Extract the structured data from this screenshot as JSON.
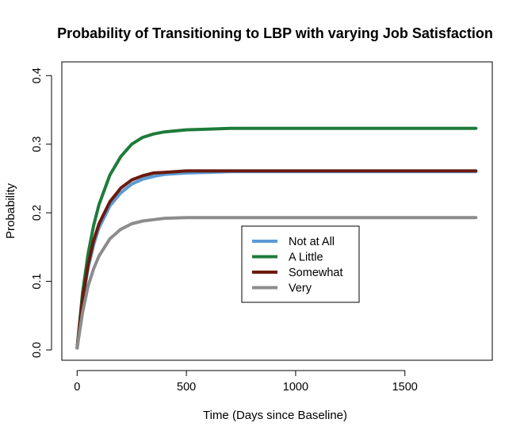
{
  "chart_data": {
    "type": "line",
    "title": "Probability of Transitioning to LBP with varying Job Satisfaction",
    "xlabel": "Time (Days since Baseline)",
    "ylabel": "Probability",
    "xlim": [
      -70,
      1900
    ],
    "ylim": [
      -0.015,
      0.42
    ],
    "x_ticks": [
      0,
      500,
      1000,
      1500
    ],
    "x_tick_labels": [
      "0",
      "500",
      "1000",
      "1500"
    ],
    "y_ticks": [
      0.0,
      0.1,
      0.2,
      0.3,
      0.4
    ],
    "y_tick_labels": [
      "0.0",
      "0.1",
      "0.2",
      "0.3",
      "0.4"
    ],
    "grid": false,
    "legend_position": "center-right",
    "series": [
      {
        "name": "Not at All",
        "color": "#5B9BD5",
        "x": [
          0,
          25,
          50,
          75,
          100,
          150,
          200,
          250,
          300,
          350,
          400,
          500,
          600,
          700,
          800,
          1000,
          1200,
          1400,
          1600,
          1825
        ],
        "y": [
          0.003,
          0.072,
          0.119,
          0.153,
          0.178,
          0.21,
          0.229,
          0.242,
          0.249,
          0.253,
          0.256,
          0.258,
          0.259,
          0.26,
          0.26,
          0.26,
          0.26,
          0.26,
          0.26,
          0.26
        ]
      },
      {
        "name": "A Little",
        "color": "#1E7B3A",
        "x": [
          0,
          25,
          50,
          75,
          100,
          150,
          200,
          250,
          300,
          350,
          400,
          500,
          600,
          700,
          800,
          1000,
          1200,
          1400,
          1600,
          1825
        ],
        "y": [
          0.003,
          0.084,
          0.14,
          0.181,
          0.212,
          0.255,
          0.282,
          0.3,
          0.31,
          0.315,
          0.318,
          0.321,
          0.322,
          0.323,
          0.323,
          0.323,
          0.323,
          0.323,
          0.323,
          0.323
        ]
      },
      {
        "name": "Somewhat",
        "color": "#6B1A0E",
        "x": [
          0,
          25,
          50,
          75,
          100,
          150,
          200,
          250,
          300,
          350,
          400,
          500,
          600,
          700,
          800,
          1000,
          1200,
          1400,
          1600,
          1825
        ],
        "y": [
          0.003,
          0.075,
          0.124,
          0.159,
          0.184,
          0.216,
          0.236,
          0.248,
          0.254,
          0.258,
          0.259,
          0.261,
          0.261,
          0.261,
          0.261,
          0.261,
          0.261,
          0.261,
          0.261,
          0.261
        ]
      },
      {
        "name": "Very",
        "color": "#8C8C8C",
        "x": [
          0,
          25,
          50,
          75,
          100,
          150,
          200,
          250,
          300,
          350,
          400,
          500,
          600,
          700,
          800,
          1000,
          1200,
          1400,
          1600,
          1825
        ],
        "y": [
          0.003,
          0.055,
          0.093,
          0.118,
          0.137,
          0.162,
          0.176,
          0.184,
          0.188,
          0.19,
          0.192,
          0.193,
          0.193,
          0.193,
          0.193,
          0.193,
          0.193,
          0.193,
          0.193,
          0.193
        ]
      }
    ]
  }
}
